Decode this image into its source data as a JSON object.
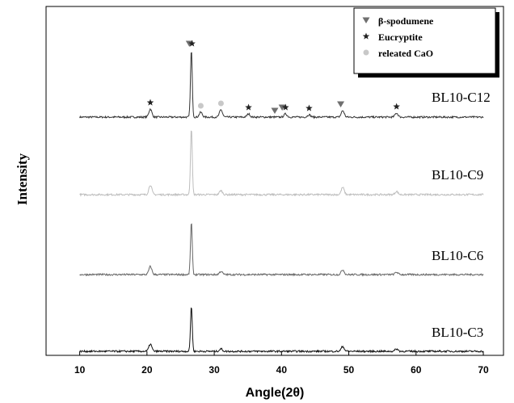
{
  "chart_data": {
    "type": "line",
    "xlabel": "Angle(2θ)",
    "ylabel": "Intensity",
    "xlim": [
      5,
      73
    ],
    "x_ticks": [
      "10",
      "20",
      "30",
      "40",
      "50",
      "60",
      "70"
    ],
    "grid": false,
    "legend_position": "top-right",
    "legend": [
      {
        "label": "β-spodumene",
        "marker": "triangle-down",
        "color": "#6f6f6f"
      },
      {
        "label": "Eucryptite",
        "marker": "star",
        "color": "#222222"
      },
      {
        "label": "releated CaO",
        "marker": "circle",
        "color": "#c8c8c8"
      }
    ],
    "series": [
      {
        "name": "BL10-C12",
        "color": "#333333",
        "peaks": [
          {
            "x": 20.5,
            "h": 10
          },
          {
            "x": 26.6,
            "h": 83
          },
          {
            "x": 28.0,
            "h": 6
          },
          {
            "x": 31.0,
            "h": 9
          },
          {
            "x": 35.1,
            "h": 4
          },
          {
            "x": 40.6,
            "h": 4
          },
          {
            "x": 44.1,
            "h": 3
          },
          {
            "x": 49.1,
            "h": 8
          },
          {
            "x": 57.1,
            "h": 5
          }
        ]
      },
      {
        "name": "BL10-C9",
        "color": "#bdbdbd",
        "peaks": [
          {
            "x": 20.5,
            "h": 12
          },
          {
            "x": 26.6,
            "h": 83
          },
          {
            "x": 31.0,
            "h": 5
          },
          {
            "x": 49.1,
            "h": 9
          },
          {
            "x": 57.1,
            "h": 4
          }
        ]
      },
      {
        "name": "BL10-C6",
        "color": "#666666",
        "peaks": [
          {
            "x": 20.5,
            "h": 10
          },
          {
            "x": 26.6,
            "h": 65
          },
          {
            "x": 31.0,
            "h": 4
          },
          {
            "x": 49.1,
            "h": 6
          },
          {
            "x": 57.1,
            "h": 3
          }
        ]
      },
      {
        "name": "BL10-C3",
        "color": "#111111",
        "peaks": [
          {
            "x": 20.5,
            "h": 9
          },
          {
            "x": 26.6,
            "h": 56
          },
          {
            "x": 31.0,
            "h": 3
          },
          {
            "x": 49.1,
            "h": 6
          },
          {
            "x": 57.1,
            "h": 3
          }
        ]
      }
    ],
    "phase_markers": [
      {
        "series": "BL10-C12",
        "x": 20.5,
        "marker": "star"
      },
      {
        "series": "BL10-C12",
        "x": 26.3,
        "marker": "triangle-down"
      },
      {
        "series": "BL10-C12",
        "x": 26.7,
        "marker": "star"
      },
      {
        "series": "BL10-C12",
        "x": 28.0,
        "marker": "circle"
      },
      {
        "series": "BL10-C12",
        "x": 31.0,
        "marker": "circle"
      },
      {
        "series": "BL10-C12",
        "x": 35.1,
        "marker": "star"
      },
      {
        "series": "BL10-C12",
        "x": 39.0,
        "marker": "triangle-down"
      },
      {
        "series": "BL10-C12",
        "x": 40.1,
        "marker": "triangle-down"
      },
      {
        "series": "BL10-C12",
        "x": 40.6,
        "marker": "star"
      },
      {
        "series": "BL10-C12",
        "x": 44.1,
        "marker": "star"
      },
      {
        "series": "BL10-C12",
        "x": 48.8,
        "marker": "triangle-down"
      },
      {
        "series": "BL10-C12",
        "x": 57.1,
        "marker": "star"
      }
    ]
  }
}
